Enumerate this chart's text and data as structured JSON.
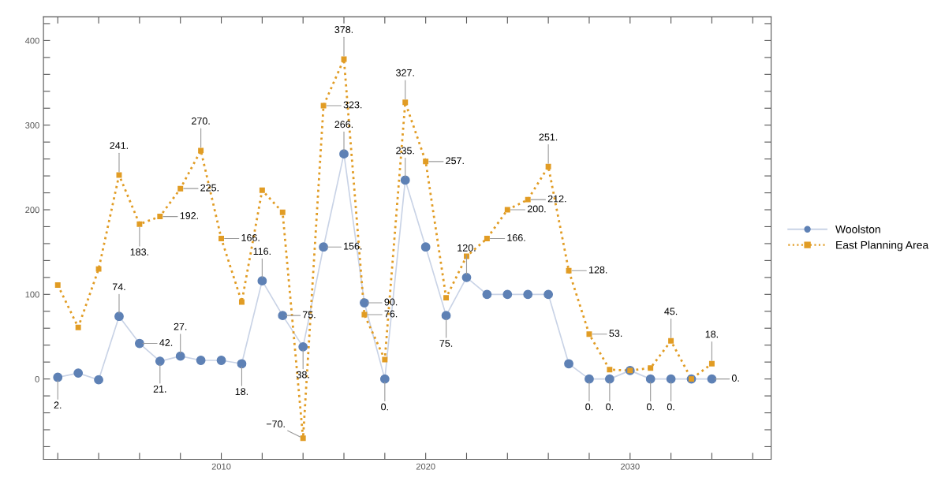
{
  "chart_data": {
    "type": "line",
    "x": [
      2002,
      2003,
      2004,
      2005,
      2006,
      2007,
      2008,
      2009,
      2010,
      2011,
      2012,
      2013,
      2014,
      2015,
      2016,
      2017,
      2018,
      2019,
      2020,
      2021,
      2022,
      2023,
      2024,
      2025,
      2026,
      2027,
      2028,
      2029,
      2030,
      2031,
      2032,
      2033,
      2034
    ],
    "series": [
      {
        "name": "Woolston",
        "color": "#5e81b5",
        "marker": "circle",
        "line_style": "solid",
        "values": [
          2,
          7,
          -1,
          74,
          42,
          21,
          27,
          22,
          22,
          18,
          116,
          75,
          38,
          156,
          266,
          90,
          0,
          235,
          156,
          75,
          120,
          100,
          100,
          100,
          100,
          18,
          0,
          0,
          10,
          0,
          0,
          0,
          0
        ],
        "value_labels": [
          "2.",
          null,
          null,
          "74.",
          "42.",
          "21.",
          "27.",
          null,
          null,
          "18.",
          "116.",
          "75.",
          "38.",
          "156.",
          "266.",
          "90.",
          "0.",
          "235.",
          null,
          "75.",
          "120.",
          null,
          null,
          null,
          null,
          null,
          "0.",
          "0.",
          null,
          "0.",
          "0.",
          null,
          "0."
        ]
      },
      {
        "name": "East Planning Area",
        "color": "#e19c24",
        "marker": "square",
        "line_style": "dotted",
        "values": [
          111,
          61,
          130,
          241,
          183,
          192,
          225,
          270,
          166,
          91,
          223,
          197,
          -70,
          323,
          378,
          76,
          23,
          327,
          257,
          96,
          145,
          166,
          200,
          212,
          251,
          128,
          53,
          11,
          10,
          13,
          45,
          0,
          18
        ],
        "value_labels": [
          null,
          null,
          null,
          "241.",
          "183.",
          "192.",
          "225.",
          "270.",
          "166.",
          null,
          null,
          null,
          "−70.",
          "323.",
          "378.",
          "76.",
          null,
          "327.",
          "257.",
          null,
          null,
          "166.",
          "200.",
          "212.",
          "251.",
          "128.",
          "53.",
          null,
          null,
          null,
          "45.",
          null,
          "18."
        ]
      }
    ],
    "xlim": [
      2001.3,
      2036.9
    ],
    "xticks": [
      {
        "value": 2002,
        "label": null
      },
      {
        "value": 2004,
        "label": null
      },
      {
        "value": 2006,
        "label": null
      },
      {
        "value": 2008,
        "label": null
      },
      {
        "value": 2010,
        "label": "2010"
      },
      {
        "value": 2012,
        "label": null
      },
      {
        "value": 2014,
        "label": null
      },
      {
        "value": 2016,
        "label": null
      },
      {
        "value": 2018,
        "label": null
      },
      {
        "value": 2020,
        "label": "2020"
      },
      {
        "value": 2022,
        "label": null
      },
      {
        "value": 2024,
        "label": null
      },
      {
        "value": 2026,
        "label": null
      },
      {
        "value": 2028,
        "label": null
      },
      {
        "value": 2030,
        "label": "2030"
      },
      {
        "value": 2032,
        "label": null
      },
      {
        "value": 2034,
        "label": null
      },
      {
        "value": 2036,
        "label": null
      }
    ],
    "ylim": [
      -95,
      428
    ],
    "yticks": [
      {
        "value": -80,
        "label": null
      },
      {
        "value": -60,
        "label": null
      },
      {
        "value": -40,
        "label": null
      },
      {
        "value": -20,
        "label": null
      },
      0,
      {
        "value": 20,
        "label": null
      },
      {
        "value": 40,
        "label": null
      },
      {
        "value": 60,
        "label": null
      },
      {
        "value": 80,
        "label": null
      },
      100,
      {
        "value": 120,
        "label": null
      },
      {
        "value": 140,
        "label": null
      },
      {
        "value": 160,
        "label": null
      },
      {
        "value": 180,
        "label": null
      },
      200,
      {
        "value": 220,
        "label": null
      },
      {
        "value": 240,
        "label": null
      },
      {
        "value": 260,
        "label": null
      },
      {
        "value": 280,
        "label": null
      },
      300,
      {
        "value": 320,
        "label": null
      },
      {
        "value": 340,
        "label": null
      },
      {
        "value": 360,
        "label": null
      },
      {
        "value": 380,
        "label": null
      },
      400,
      {
        "value": 420,
        "label": null
      }
    ],
    "grid": false,
    "legend": "right"
  }
}
